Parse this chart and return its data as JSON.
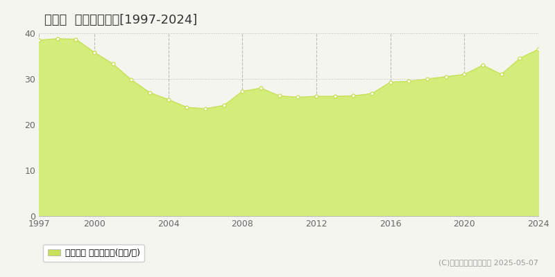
{
  "title": "東郷町  基準地価推移[1997-2024]",
  "years": [
    1997,
    1998,
    1999,
    2000,
    2001,
    2002,
    2003,
    2004,
    2005,
    2006,
    2007,
    2008,
    2009,
    2010,
    2011,
    2012,
    2013,
    2014,
    2015,
    2016,
    2017,
    2018,
    2019,
    2020,
    2021,
    2022,
    2023,
    2024
  ],
  "values": [
    38.5,
    38.8,
    38.7,
    35.8,
    33.3,
    29.8,
    27.0,
    25.5,
    23.8,
    23.5,
    24.2,
    27.3,
    28.0,
    26.3,
    26.0,
    26.2,
    26.2,
    26.3,
    26.8,
    29.3,
    29.5,
    30.0,
    30.5,
    31.0,
    33.0,
    31.0,
    34.5,
    36.5
  ],
  "line_color": "#c8e05a",
  "fill_color": "#d4ed7a",
  "marker_facecolor": "#ffffff",
  "marker_edgecolor": "#c8e05a",
  "background_color": "#f5f5f0",
  "grid_color_v": "#aaaaaa",
  "grid_color_h": "#aaaaaa",
  "ylim": [
    0,
    40
  ],
  "yticks": [
    0,
    10,
    20,
    30,
    40
  ],
  "legend_label": "基準地価 平均坪単価(万円/坪)",
  "legend_color": "#c8e05a",
  "copyright_text": "(C)土地価格ドットコム 2025-05-07",
  "title_fontsize": 13,
  "tick_fontsize": 9,
  "legend_fontsize": 9,
  "copyright_fontsize": 8,
  "xtick_years": [
    1997,
    2000,
    2004,
    2008,
    2012,
    2016,
    2020,
    2024
  ]
}
